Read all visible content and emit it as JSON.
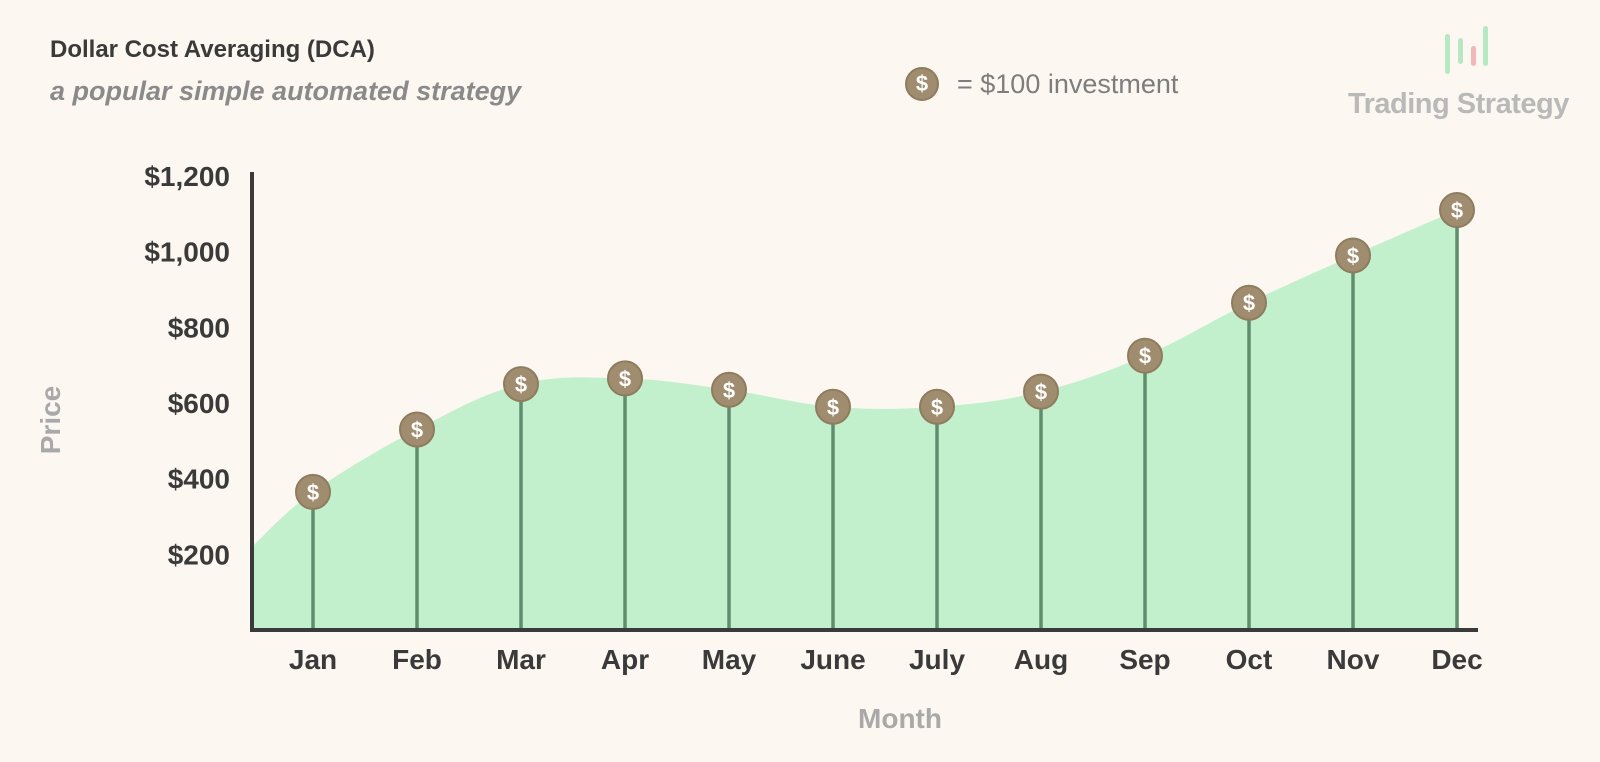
{
  "header": {
    "title": "Dollar Cost Averaging (DCA)",
    "subtitle": "a popular simple automated strategy"
  },
  "legend": {
    "symbol": "$",
    "text": "= $100 investment"
  },
  "brand": {
    "name": "Trading Strategy",
    "icon": "candlestick-icon"
  },
  "colors": {
    "area_fill": "#c3f0cc",
    "stem": "#5f8e6e",
    "coin": "#a08c6e",
    "axis": "#3a3a3a",
    "candle_green": "#b8e8c2",
    "candle_red": "#f2b8b8"
  },
  "chart_data": {
    "type": "area",
    "xlabel": "Month",
    "ylabel": "Price",
    "categories": [
      "Jan",
      "Feb",
      "Mar",
      "Apr",
      "May",
      "June",
      "July",
      "Aug",
      "Sep",
      "Oct",
      "Nov",
      "Dec"
    ],
    "values": [
      365,
      530,
      650,
      665,
      635,
      590,
      590,
      630,
      725,
      865,
      990,
      1110
    ],
    "marker_label": "$",
    "y_ticks": [
      {
        "value": 200,
        "label": "$200"
      },
      {
        "value": 400,
        "label": "$400"
      },
      {
        "value": 600,
        "label": "$600"
      },
      {
        "value": 800,
        "label": "$800"
      },
      {
        "value": 1000,
        "label": "$1,000"
      },
      {
        "value": 1200,
        "label": "$1,200"
      }
    ],
    "ylim": [
      0,
      1200
    ],
    "grid": false,
    "legend_position": "top-center"
  }
}
